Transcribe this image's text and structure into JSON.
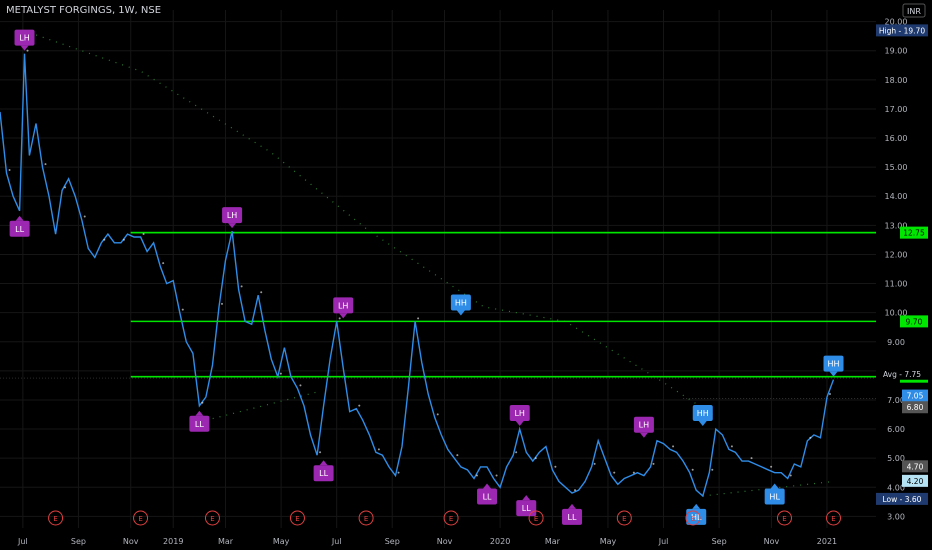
{
  "header": {
    "symbol_title": "METALYST FORGINGS, 1W, NSE"
  },
  "currency": "INR",
  "chart_data": {
    "type": "line",
    "title": "METALYST FORGINGS, 1W, NSE",
    "ylim": [
      2.6,
      20.4
    ],
    "y_ticks": [
      3,
      4,
      5,
      6,
      7,
      8,
      9,
      10,
      11,
      12,
      13,
      14,
      15,
      16,
      17,
      18,
      19,
      20
    ],
    "y_tick_labels": [
      "3.00",
      "4.00",
      "5.00",
      "6.00",
      "7.00",
      "8.00",
      "9.00",
      "10.00",
      "11.00",
      "12.00",
      "13.00",
      "14.00",
      "15.00",
      "16.00",
      "17.00",
      "18.00",
      "19.00",
      "20.00"
    ],
    "x_range": [
      2018.47,
      2021.15
    ],
    "x_ticks": [
      {
        "x": 2018.54,
        "label": "Jul"
      },
      {
        "x": 2018.71,
        "label": "Sep"
      },
      {
        "x": 2018.87,
        "label": "Nov"
      },
      {
        "x": 2019.0,
        "label": "2019"
      },
      {
        "x": 2019.16,
        "label": "Mar"
      },
      {
        "x": 2019.33,
        "label": "May"
      },
      {
        "x": 2019.5,
        "label": "Jul"
      },
      {
        "x": 2019.67,
        "label": "Sep"
      },
      {
        "x": 2019.83,
        "label": "Nov"
      },
      {
        "x": 2020.0,
        "label": "2020"
      },
      {
        "x": 2020.16,
        "label": "Mar"
      },
      {
        "x": 2020.33,
        "label": "May"
      },
      {
        "x": 2020.5,
        "label": "Jul"
      },
      {
        "x": 2020.67,
        "label": "Sep"
      },
      {
        "x": 2020.83,
        "label": "Nov"
      },
      {
        "x": 2021.0,
        "label": "2021"
      }
    ],
    "series": [
      {
        "color": "#2f8de8",
        "x": [
          2018.47,
          2018.49,
          2018.51,
          2018.53,
          2018.545,
          2018.56,
          2018.58,
          2018.6,
          2018.62,
          2018.64,
          2018.66,
          2018.68,
          2018.7,
          2018.72,
          2018.74,
          2018.76,
          2018.78,
          2018.8,
          2018.82,
          2018.84,
          2018.86,
          2018.88,
          2018.9,
          2018.92,
          2018.94,
          2018.96,
          2018.98,
          2019.0,
          2019.02,
          2019.04,
          2019.06,
          2019.08,
          2019.1,
          2019.12,
          2019.14,
          2019.16,
          2019.18,
          2019.2,
          2019.22,
          2019.24,
          2019.26,
          2019.28,
          2019.3,
          2019.32,
          2019.34,
          2019.36,
          2019.38,
          2019.4,
          2019.42,
          2019.44,
          2019.46,
          2019.48,
          2019.5,
          2019.52,
          2019.54,
          2019.56,
          2019.58,
          2019.6,
          2019.62,
          2019.64,
          2019.66,
          2019.68,
          2019.7,
          2019.72,
          2019.74,
          2019.76,
          2019.78,
          2019.8,
          2019.82,
          2019.84,
          2019.86,
          2019.88,
          2019.9,
          2019.92,
          2019.94,
          2019.96,
          2019.98,
          2020.0,
          2020.02,
          2020.04,
          2020.06,
          2020.08,
          2020.1,
          2020.12,
          2020.14,
          2020.16,
          2020.18,
          2020.2,
          2020.22,
          2020.24,
          2020.26,
          2020.28,
          2020.3,
          2020.32,
          2020.34,
          2020.36,
          2020.38,
          2020.4,
          2020.42,
          2020.44,
          2020.46,
          2020.48,
          2020.5,
          2020.52,
          2020.54,
          2020.56,
          2020.58,
          2020.6,
          2020.62,
          2020.64,
          2020.66,
          2020.68,
          2020.7,
          2020.72,
          2020.74,
          2020.76,
          2020.78,
          2020.8,
          2020.82,
          2020.84,
          2020.86,
          2020.88,
          2020.9,
          2020.92,
          2020.94,
          2020.96,
          2020.98,
          2021.0,
          2021.02
        ],
        "y": [
          16.9,
          14.8,
          14.0,
          13.5,
          18.9,
          15.4,
          16.5,
          15.0,
          14.0,
          12.7,
          14.2,
          14.6,
          14.0,
          13.2,
          12.2,
          11.9,
          12.4,
          12.7,
          12.4,
          12.4,
          12.7,
          12.6,
          12.6,
          12.1,
          12.4,
          11.6,
          11.0,
          11.1,
          10.0,
          9.0,
          8.6,
          6.8,
          7.1,
          8.2,
          10.2,
          11.8,
          12.8,
          10.8,
          9.7,
          9.6,
          10.6,
          9.4,
          8.4,
          7.8,
          8.8,
          7.8,
          7.4,
          6.8,
          5.8,
          5.1,
          6.8,
          8.4,
          9.7,
          8.1,
          6.6,
          6.7,
          6.3,
          5.8,
          5.2,
          5.1,
          4.7,
          4.4,
          5.4,
          7.5,
          9.7,
          8.3,
          7.2,
          6.4,
          5.8,
          5.3,
          5.0,
          4.7,
          4.6,
          4.3,
          4.7,
          4.7,
          4.3,
          4.0,
          4.7,
          5.1,
          6.0,
          5.2,
          4.9,
          5.2,
          5.4,
          4.6,
          4.2,
          4.0,
          3.8,
          3.9,
          4.2,
          4.7,
          5.6,
          5.0,
          4.4,
          4.1,
          4.3,
          4.4,
          4.5,
          4.4,
          4.7,
          5.6,
          5.5,
          5.3,
          5.2,
          4.9,
          4.5,
          3.9,
          3.7,
          4.5,
          6.0,
          5.8,
          5.3,
          5.2,
          4.9,
          4.9,
          4.8,
          4.7,
          4.6,
          4.5,
          4.5,
          4.3,
          4.8,
          4.7,
          5.6,
          5.8,
          5.7,
          7.1,
          7.7
        ]
      }
    ],
    "swing_labels": [
      {
        "x": 2018.545,
        "y": 18.9,
        "label": "LH",
        "kind": "high",
        "color": "#9c27b0"
      },
      {
        "x": 2018.53,
        "y": 13.5,
        "label": "LL",
        "kind": "low",
        "color": "#9c27b0"
      },
      {
        "x": 2019.18,
        "y": 12.8,
        "label": "LH",
        "kind": "high",
        "color": "#9c27b0"
      },
      {
        "x": 2019.08,
        "y": 6.8,
        "label": "LL",
        "kind": "low",
        "color": "#9c27b0"
      },
      {
        "x": 2019.52,
        "y": 9.7,
        "label": "LH",
        "kind": "high",
        "color": "#9c27b0"
      },
      {
        "x": 2019.46,
        "y": 5.1,
        "label": "LL",
        "kind": "low",
        "color": "#9c27b0"
      },
      {
        "x": 2019.88,
        "y": 9.8,
        "label": "HH",
        "kind": "high",
        "color": "#2f8de8"
      },
      {
        "x": 2019.96,
        "y": 4.3,
        "label": "LL",
        "kind": "low",
        "color": "#9c27b0"
      },
      {
        "x": 2020.06,
        "y": 6.0,
        "label": "LH",
        "kind": "high",
        "color": "#9c27b0"
      },
      {
        "x": 2020.08,
        "y": 3.9,
        "label": "LL",
        "kind": "low",
        "color": "#9c27b0"
      },
      {
        "x": 2020.22,
        "y": 3.6,
        "label": "LL",
        "kind": "low",
        "color": "#9c27b0"
      },
      {
        "x": 2020.44,
        "y": 5.6,
        "label": "LH",
        "kind": "high",
        "color": "#9c27b0"
      },
      {
        "x": 2020.6,
        "y": 3.6,
        "label": "HL",
        "kind": "low",
        "color": "#2f8de8"
      },
      {
        "x": 2020.62,
        "y": 6.0,
        "label": "HH",
        "kind": "high",
        "color": "#2f8de8"
      },
      {
        "x": 2020.84,
        "y": 4.3,
        "label": "HL",
        "kind": "low",
        "color": "#2f8de8"
      },
      {
        "x": 2021.02,
        "y": 7.7,
        "label": "HH",
        "kind": "high",
        "color": "#2f8de8"
      }
    ],
    "horizontal_levels": [
      {
        "value": 12.75,
        "label": "12.75",
        "color": "#00e600"
      },
      {
        "value": 9.7,
        "label": "9.70",
        "color": "#00e600"
      },
      {
        "value": 7.8,
        "label": "7.80",
        "color": "#00e600"
      }
    ],
    "price_tags": [
      {
        "value": 19.7,
        "label": "High - 19.70",
        "bg": "#1e3a6e",
        "fg": "#ffffff"
      },
      {
        "value": 7.75,
        "label": "Avg - 7.75",
        "bg": "#000000",
        "fg": "#d1d4dc"
      },
      {
        "value": 7.05,
        "label": "7.05",
        "bg": "#2f8de8",
        "fg": "#ffffff"
      },
      {
        "value": 6.8,
        "label": "6.80",
        "bg": "#555555",
        "fg": "#ffffff"
      },
      {
        "value": 4.7,
        "label": "4.70",
        "bg": "#555555",
        "fg": "#ffffff"
      },
      {
        "value": 4.2,
        "label": "4.20",
        "bg": "#b6e3f4",
        "fg": "#000000"
      },
      {
        "value": 3.6,
        "label": "Low - 3.60",
        "bg": "#1e3a6e",
        "fg": "#ffffff"
      }
    ],
    "earnings_marker": "E",
    "earnings_x": [
      2018.64,
      2018.9,
      2019.12,
      2019.38,
      2019.59,
      2019.85,
      2020.11,
      2020.38,
      2020.59,
      2020.87,
      2021.02
    ]
  }
}
